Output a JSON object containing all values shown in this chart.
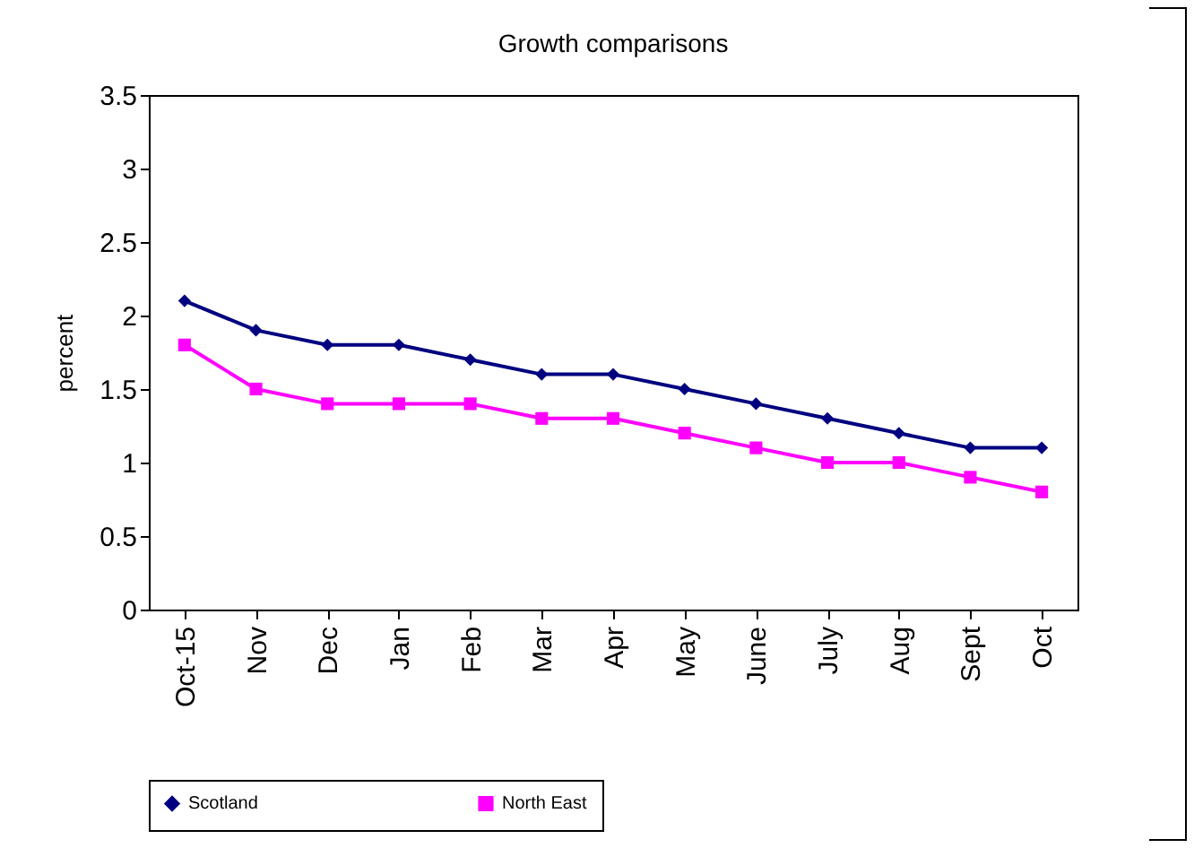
{
  "chart_data": {
    "type": "line",
    "title": "Growth comparisons",
    "ylabel": "percent",
    "categories": [
      "Oct-15",
      "Nov",
      "Dec",
      "Jan",
      "Feb",
      "Mar",
      "Apr",
      "May",
      "June",
      "July",
      "Aug",
      "Sept",
      "Oct"
    ],
    "series": [
      {
        "name": "Scotland",
        "color": "#000080",
        "marker": "diamond",
        "values": [
          2.1,
          1.9,
          1.8,
          1.8,
          1.7,
          1.6,
          1.6,
          1.5,
          1.4,
          1.3,
          1.2,
          1.1,
          1.1
        ]
      },
      {
        "name": "North East",
        "color": "#ff00ff",
        "marker": "square",
        "values": [
          1.8,
          1.5,
          1.4,
          1.4,
          1.4,
          1.3,
          1.3,
          1.2,
          1.1,
          1.0,
          1.0,
          0.9,
          0.8
        ]
      }
    ],
    "ylim": [
      0,
      3.5
    ],
    "yticks": [
      0,
      0.5,
      1,
      1.5,
      2,
      2.5,
      3,
      3.5
    ],
    "grid": false,
    "legend": "bottom",
    "line_style": "solid"
  }
}
